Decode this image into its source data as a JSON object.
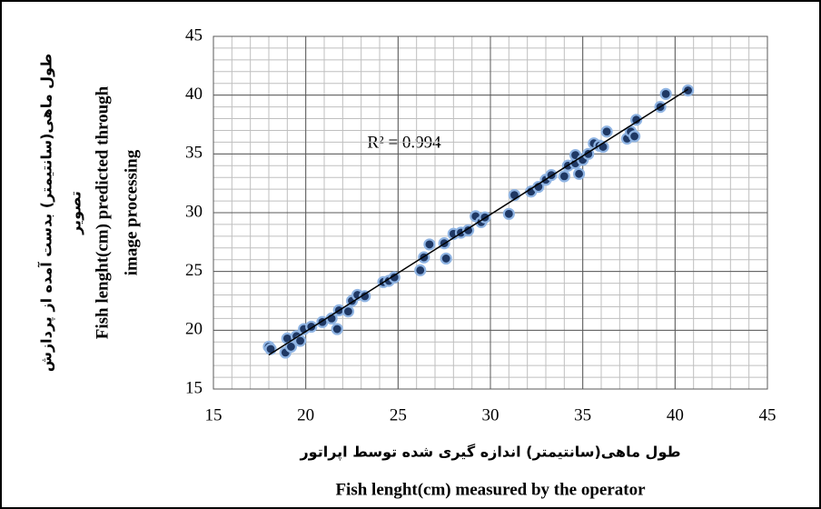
{
  "chart_data": {
    "type": "scatter",
    "y_label_fa": [
      "طول ماهی(سانتیمتر) بدست آمده از پردازش",
      "تصویر"
    ],
    "y_label_en": [
      "Fish lenght(cm) predicted through",
      "image processing"
    ],
    "x_label_fa": "طول ماهی(سانتیمتر) اندازه گیری شده توسط اپراتور",
    "x_label_en": "Fish lenght(cm) measured by the operator",
    "annotation": "R² = 0.994",
    "xlim": [
      15,
      45
    ],
    "xticks": [
      15,
      20,
      25,
      30,
      35,
      40,
      45
    ],
    "ylim": [
      15,
      45
    ],
    "yticks": [
      15,
      20,
      25,
      30,
      35,
      40,
      45
    ],
    "grid": true,
    "minor_grid_step": 1,
    "color": "#1f3864",
    "edge_color": "#8fb4e3",
    "trendline": {
      "x": [
        18,
        40.7
      ],
      "y": [
        17.9,
        40.5
      ],
      "color": "#000000"
    },
    "x": [
      18.0,
      18.1,
      18.9,
      19.0,
      19.2,
      19.5,
      19.7,
      19.9,
      20.3,
      20.9,
      21.4,
      21.7,
      21.8,
      22.3,
      22.5,
      22.8,
      23.2,
      24.2,
      24.5,
      24.8,
      26.2,
      26.4,
      26.7,
      27.5,
      27.6,
      28.0,
      28.4,
      28.8,
      29.2,
      29.5,
      29.7,
      31.0,
      31.3,
      32.2,
      32.6,
      33.0,
      33.3,
      34.0,
      34.2,
      34.6,
      34.6,
      34.8,
      35.0,
      35.3,
      35.6,
      35.9,
      36.1,
      36.3,
      37.4,
      37.6,
      37.8,
      37.9,
      39.2,
      39.5,
      40.7
    ],
    "y": [
      18.6,
      18.4,
      18.1,
      19.3,
      18.6,
      19.5,
      19.1,
      20.1,
      20.3,
      20.7,
      21.0,
      20.1,
      21.7,
      21.6,
      22.5,
      23.0,
      22.9,
      24.1,
      24.2,
      24.5,
      25.1,
      26.2,
      27.3,
      27.4,
      26.1,
      28.2,
      28.3,
      28.5,
      29.7,
      29.2,
      29.6,
      29.9,
      31.5,
      31.8,
      32.2,
      32.8,
      33.2,
      33.1,
      34.0,
      34.2,
      34.9,
      33.3,
      34.5,
      35.0,
      35.9,
      35.7,
      35.6,
      36.9,
      36.3,
      36.9,
      36.5,
      37.9,
      39.0,
      40.1,
      40.4
    ]
  }
}
